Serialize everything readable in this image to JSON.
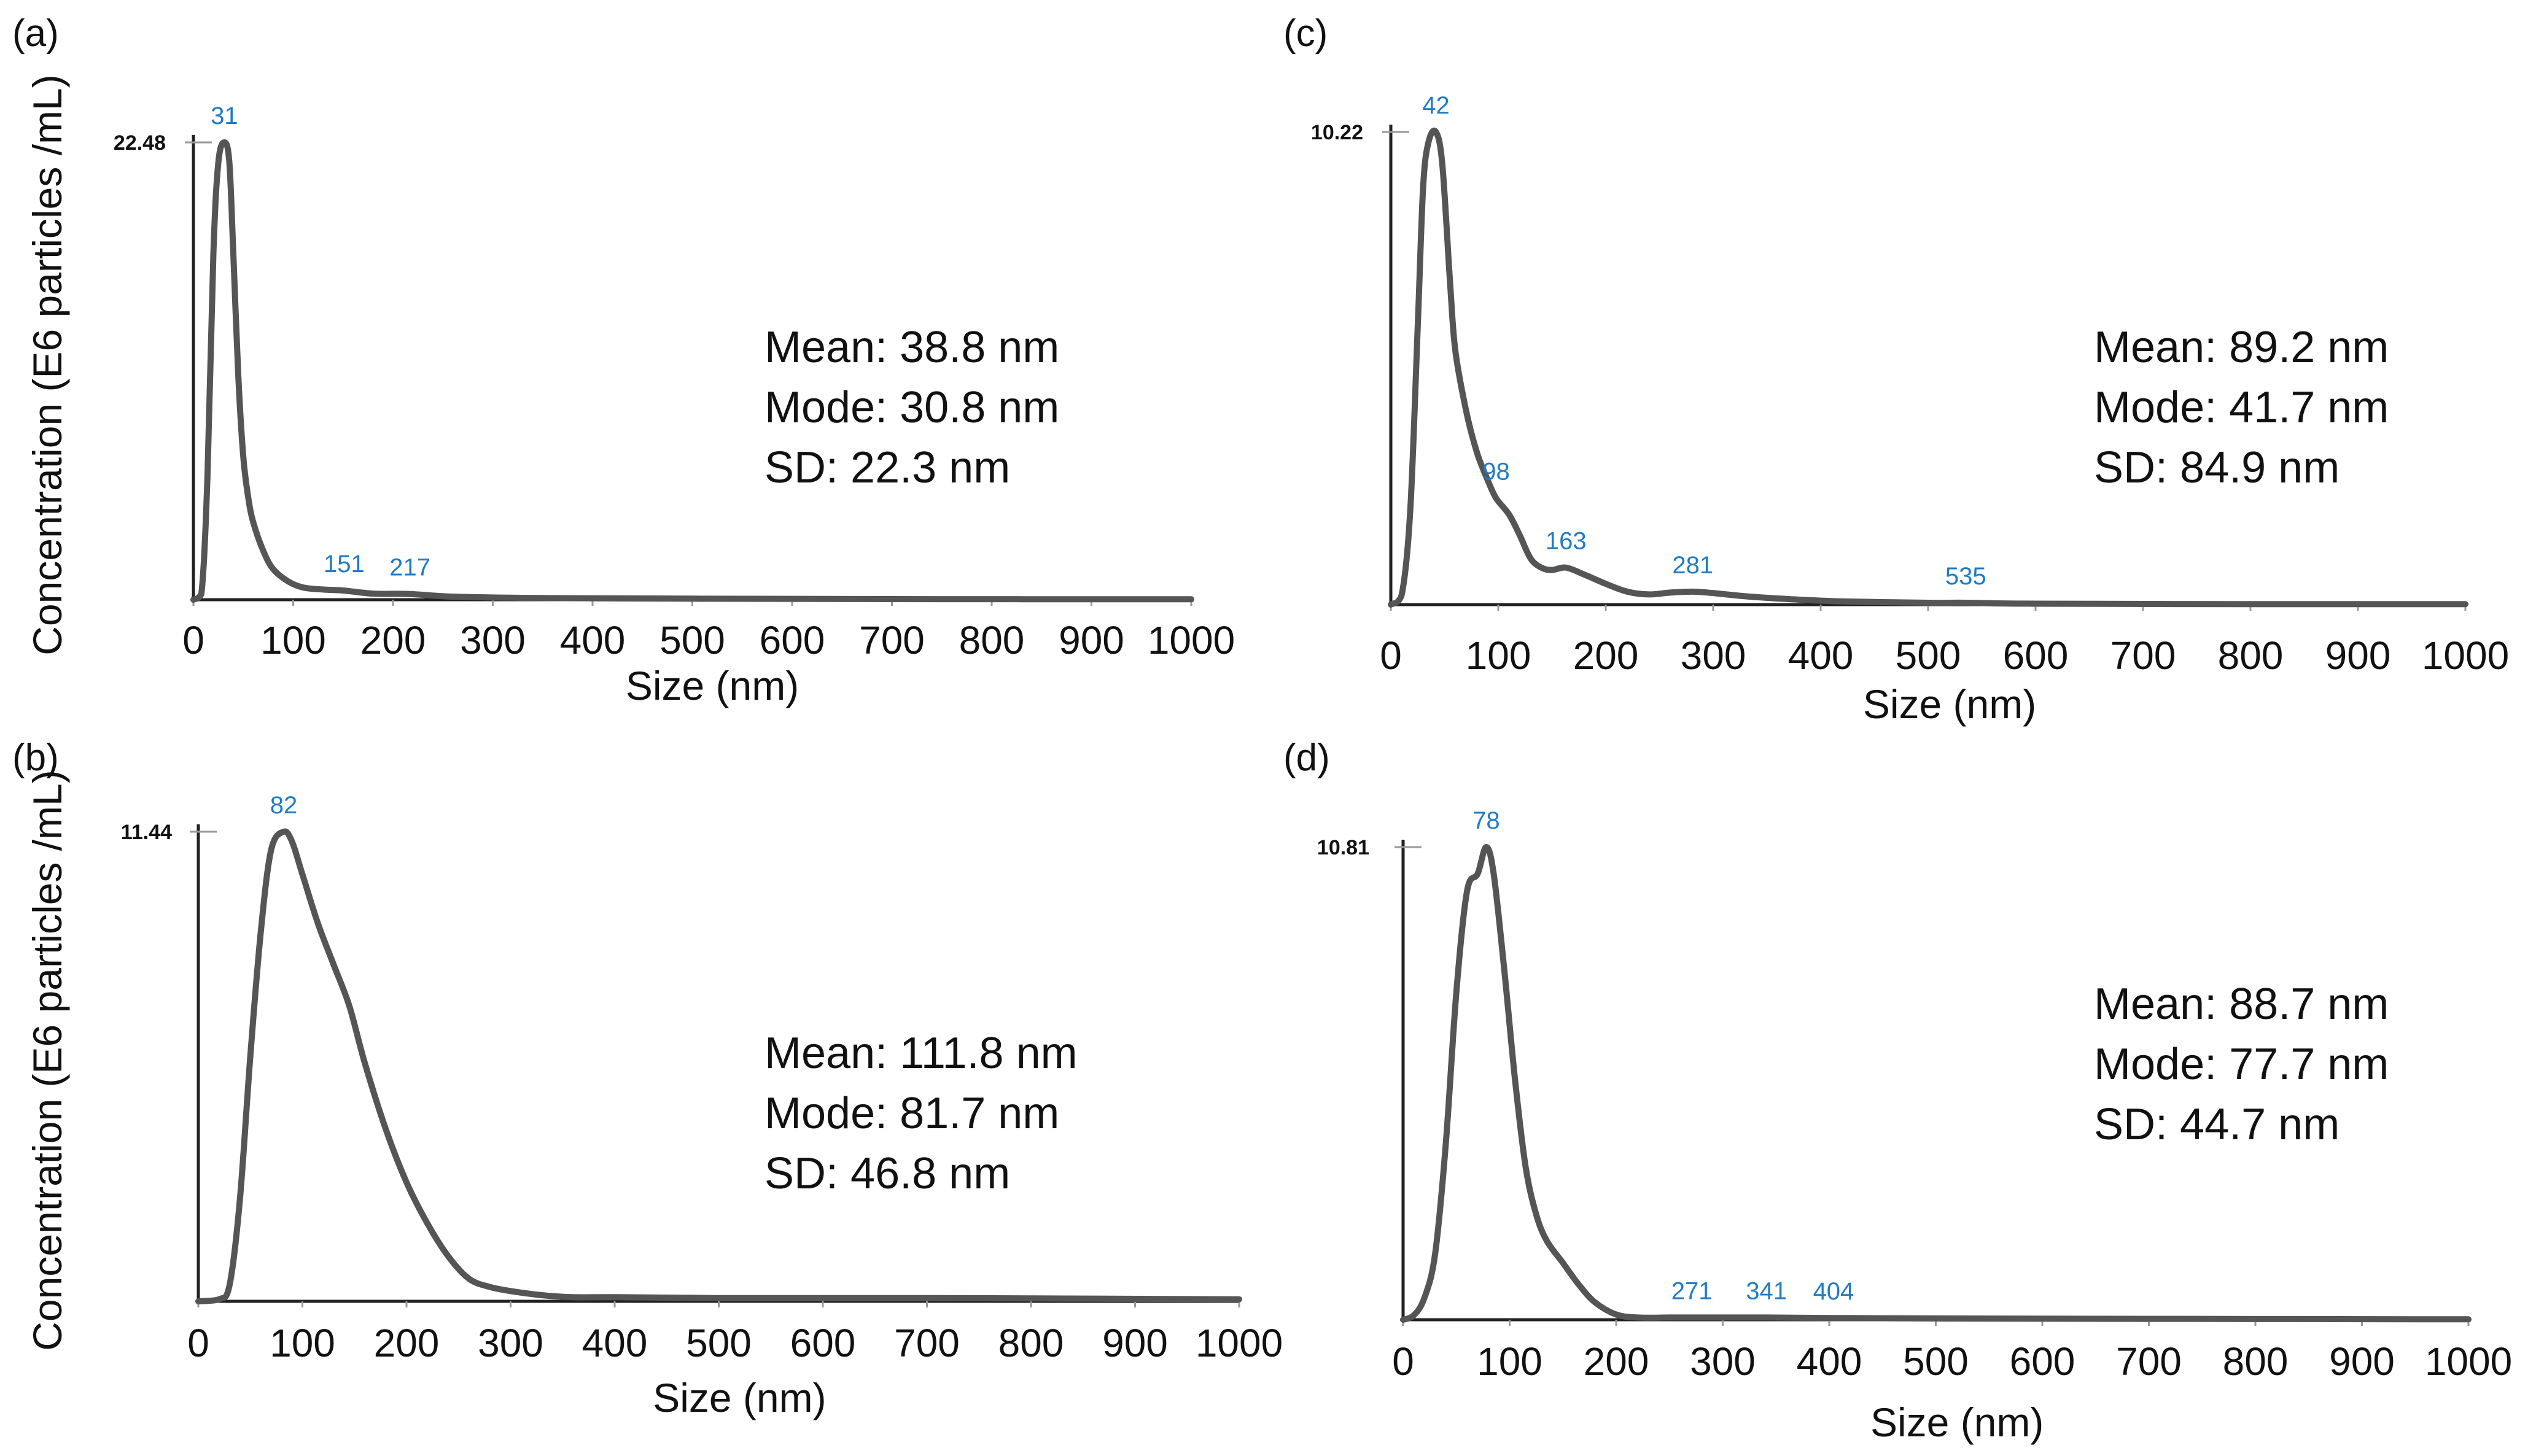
{
  "chart_data": [
    {
      "type": "line",
      "panel_label": "(a)",
      "xlabel": "Size (nm)",
      "ylabel": "Concentration (E6 particles /mL)",
      "xlim": [
        0,
        1000
      ],
      "xticks": [
        "0",
        "100",
        "200",
        "300",
        "400",
        "500",
        "600",
        "700",
        "800",
        "900",
        "1000"
      ],
      "ymax_label": "22.48",
      "ymax": 22.48,
      "peak_labels": [
        {
          "text": "31",
          "x": 31
        },
        {
          "text": "151",
          "x": 151
        },
        {
          "text": "217",
          "x": 217
        }
      ],
      "stats": [
        "Mean: 38.8 nm",
        "Mode: 30.8 nm",
        "SD: 22.3 nm"
      ],
      "series": [
        {
          "name": "Concentration",
          "x": [
            0,
            8,
            14,
            20,
            25,
            31,
            36,
            40,
            45,
            50,
            55,
            60,
            70,
            80,
            95,
            110,
            130,
            151,
            180,
            217,
            260,
            350,
            500,
            700,
            1000
          ],
          "y": [
            0,
            0.3,
            6,
            17,
            21.5,
            22.48,
            21.5,
            17,
            11,
            7,
            5,
            3.8,
            2.4,
            1.5,
            0.9,
            0.6,
            0.5,
            0.45,
            0.3,
            0.28,
            0.15,
            0.08,
            0.05,
            0.03,
            0.02
          ]
        }
      ]
    },
    {
      "type": "line",
      "panel_label": "(b)",
      "xlabel": "Size (nm)",
      "ylabel": "Concentration (E6 particles /mL)",
      "xlim": [
        0,
        1000
      ],
      "xticks": [
        "0",
        "100",
        "200",
        "300",
        "400",
        "500",
        "600",
        "700",
        "800",
        "900",
        "1000"
      ],
      "ymax_label": "11.44",
      "ymax": 11.44,
      "peak_labels": [
        {
          "text": "82",
          "x": 82
        }
      ],
      "stats": [
        "Mean: 111.8 nm",
        "Mode: 81.7 nm",
        "SD: 46.8 nm"
      ],
      "series": [
        {
          "name": "Concentration",
          "x": [
            0,
            20,
            30,
            40,
            50,
            60,
            70,
            82,
            90,
            100,
            115,
            130,
            145,
            160,
            180,
            200,
            220,
            240,
            260,
            280,
            300,
            330,
            360,
            400,
            500,
            700,
            1000
          ],
          "y": [
            0,
            0.05,
            0.4,
            2.5,
            6,
            9,
            11,
            11.44,
            11.2,
            10.4,
            9.2,
            8.2,
            7.2,
            5.8,
            4.2,
            2.9,
            1.9,
            1.1,
            0.55,
            0.35,
            0.25,
            0.15,
            0.1,
            0.1,
            0.08,
            0.08,
            0.05
          ]
        }
      ]
    },
    {
      "type": "line",
      "panel_label": "(c)",
      "xlabel": "Size (nm)",
      "ylabel": "",
      "xlim": [
        0,
        1000
      ],
      "xticks": [
        "0",
        "100",
        "200",
        "300",
        "400",
        "500",
        "600",
        "700",
        "800",
        "900",
        "1000"
      ],
      "ymax_label": "10.22",
      "ymax": 10.22,
      "peak_labels": [
        {
          "text": "42",
          "x": 42
        },
        {
          "text": "98",
          "x": 98
        },
        {
          "text": "163",
          "x": 163
        },
        {
          "text": "281",
          "x": 281
        },
        {
          "text": "535",
          "x": 535
        }
      ],
      "stats": [
        "Mean: 89.2 nm",
        "Mode: 41.7 nm",
        "SD: 84.9 nm"
      ],
      "series": [
        {
          "name": "Concentration",
          "x": [
            0,
            10,
            18,
            25,
            30,
            35,
            42,
            48,
            55,
            60,
            70,
            80,
            90,
            98,
            110,
            120,
            130,
            140,
            150,
            163,
            180,
            200,
            220,
            240,
            260,
            281,
            300,
            330,
            370,
            420,
            500,
            535,
            600,
            800,
            1000
          ],
          "y": [
            0,
            0.2,
            2,
            6,
            9,
            10,
            10.22,
            9.5,
            7,
            5.5,
            4.2,
            3.3,
            2.7,
            2.3,
            1.95,
            1.5,
            1.0,
            0.8,
            0.75,
            0.8,
            0.65,
            0.45,
            0.28,
            0.22,
            0.26,
            0.28,
            0.25,
            0.18,
            0.12,
            0.07,
            0.04,
            0.04,
            0.02,
            0.01,
            0.01
          ]
        }
      ]
    },
    {
      "type": "line",
      "panel_label": "(d)",
      "xlabel": "Size (nm)",
      "ylabel": "",
      "xlim": [
        0,
        1000
      ],
      "xticks": [
        "0",
        "100",
        "200",
        "300",
        "400",
        "500",
        "600",
        "700",
        "800",
        "900",
        "1000"
      ],
      "ymax_label": "10.81",
      "ymax": 10.81,
      "peak_labels": [
        {
          "text": "78",
          "x": 78
        },
        {
          "text": "271",
          "x": 271
        },
        {
          "text": "341",
          "x": 341
        },
        {
          "text": "404",
          "x": 404
        }
      ],
      "stats": [
        "Mean: 88.7 nm",
        "Mode: 77.7 nm",
        "SD: 44.7 nm"
      ],
      "series": [
        {
          "name": "Concentration",
          "x": [
            0,
            10,
            20,
            30,
            40,
            50,
            60,
            70,
            78,
            85,
            95,
            105,
            115,
            125,
            135,
            150,
            165,
            180,
            200,
            220,
            250,
            271,
            300,
            341,
            404,
            500,
            700,
            1000
          ],
          "y": [
            0,
            0.1,
            0.5,
            1.5,
            4,
            7.5,
            9.8,
            10.2,
            10.81,
            10.2,
            8,
            5.5,
            3.5,
            2.4,
            1.8,
            1.3,
            0.8,
            0.4,
            0.12,
            0.05,
            0.05,
            0.05,
            0.05,
            0.05,
            0.04,
            0.03,
            0.02,
            0.01
          ]
        }
      ]
    }
  ]
}
